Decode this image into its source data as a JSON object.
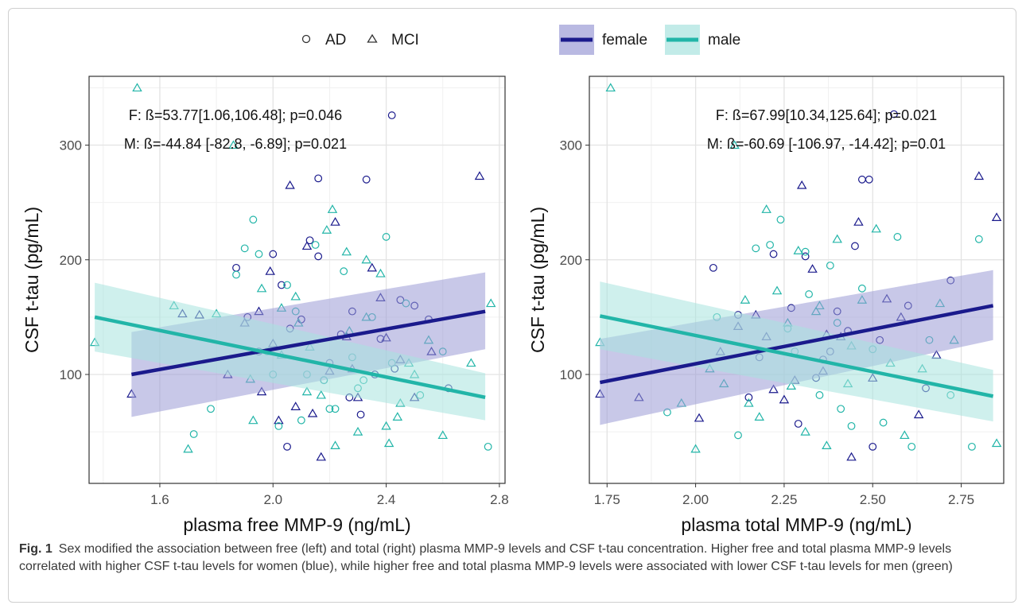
{
  "legend": {
    "shape_items": [
      {
        "label": "AD",
        "shape": "circle"
      },
      {
        "label": "MCI",
        "shape": "triangle"
      }
    ],
    "sex_items": [
      {
        "label": "female",
        "color": "#1a1a8c",
        "fill": "#9b9bd6"
      },
      {
        "label": "male",
        "color": "#22b5a8",
        "fill": "#a8e3de"
      }
    ]
  },
  "caption": {
    "label": "Fig. 1",
    "text": "Sex modified the association between free (left) and total (right) plasma MMP-9 levels and CSF t-tau concentration. Higher free and total plasma MMP-9 levels correlated with higher CSF t-tau levels for women (blue), while higher free and total plasma MMP-9 levels were associated with lower CSF t-tau levels for men (green)"
  },
  "chart_data": [
    {
      "type": "scatter",
      "xlabel": "plasma free MMP-9 (ng/mL)",
      "ylabel": "CSF t-tau (pg/mL)",
      "xlim": [
        1.35,
        2.82
      ],
      "ylim": [
        5,
        360
      ],
      "xticks": [
        1.6,
        2.0,
        2.4,
        2.8
      ],
      "xticklabels": [
        "1.6",
        "2.0",
        "2.4",
        "2.8"
      ],
      "yticks": [
        100,
        200,
        300
      ],
      "yticklabels": [
        "100",
        "200",
        "300"
      ],
      "grid": true,
      "annotations": [
        "F: ß=53.77[1.06,106.48]; p=0.046",
        "M: ß=-44.84 [-82.8, -6.89]; p=0.021"
      ],
      "fits": [
        {
          "name": "female",
          "x": [
            1.5,
            2.75
          ],
          "y": [
            100,
            155
          ],
          "ci_lower": [
            63,
            122
          ],
          "ci_upper": [
            137,
            189
          ]
        },
        {
          "name": "male",
          "x": [
            1.37,
            2.75
          ],
          "y": [
            150,
            80
          ],
          "ci_lower": [
            120,
            60
          ],
          "ci_upper": [
            180,
            101
          ]
        }
      ],
      "series": [
        {
          "sex": "female",
          "group": "AD",
          "x": [
            1.87,
            1.91,
            2.0,
            2.03,
            2.06,
            2.1,
            2.13,
            2.16,
            2.18,
            2.2,
            2.24,
            2.28,
            2.33,
            2.36,
            2.38,
            2.42,
            2.45,
            2.5,
            2.55,
            2.62,
            2.05,
            2.16,
            1.95,
            2.27,
            2.43,
            2.31
          ],
          "y": [
            193,
            150,
            205,
            178,
            140,
            148,
            217,
            203,
            95,
            110,
            135,
            155,
            270,
            100,
            131,
            326,
            165,
            160,
            148,
            88,
            37,
            271,
            120,
            80,
            105,
            65
          ]
        },
        {
          "sex": "female",
          "group": "MCI",
          "x": [
            1.5,
            1.68,
            1.74,
            1.84,
            1.9,
            1.95,
            1.99,
            2.02,
            2.06,
            2.08,
            2.12,
            2.17,
            2.2,
            2.22,
            2.26,
            2.3,
            2.35,
            2.38,
            2.4,
            2.45,
            2.5,
            2.56,
            2.73,
            2.0,
            1.96,
            2.14,
            2.28
          ],
          "y": [
            83,
            153,
            152,
            100,
            145,
            155,
            190,
            60,
            265,
            72,
            212,
            28,
            103,
            233,
            133,
            80,
            193,
            167,
            132,
            113,
            80,
            120,
            273,
            127,
            85,
            66,
            105
          ]
        },
        {
          "sex": "male",
          "group": "AD",
          "x": [
            1.72,
            1.78,
            1.87,
            1.93,
            1.95,
            1.98,
            2.02,
            2.05,
            2.08,
            2.12,
            2.15,
            2.18,
            2.22,
            2.25,
            2.28,
            2.32,
            2.35,
            2.4,
            2.42,
            2.47,
            2.52,
            2.6,
            2.76,
            2.1,
            2.2,
            2.3,
            2.0,
            1.9
          ],
          "y": [
            48,
            70,
            187,
            235,
            205,
            120,
            55,
            178,
            155,
            100,
            213,
            95,
            70,
            190,
            115,
            95,
            150,
            220,
            110,
            162,
            82,
            120,
            37,
            60,
            70,
            88,
            100,
            210
          ]
        },
        {
          "sex": "male",
          "group": "MCI",
          "x": [
            1.37,
            1.52,
            1.65,
            1.7,
            1.8,
            1.86,
            1.92,
            1.96,
            2.03,
            2.08,
            2.13,
            2.17,
            2.21,
            2.26,
            2.3,
            2.33,
            2.38,
            2.41,
            2.44,
            2.48,
            2.55,
            2.6,
            2.7,
            2.77,
            2.09,
            2.19,
            2.33,
            2.4,
            1.93,
            2.03,
            2.22,
            2.27,
            2.5,
            2.45,
            2.12
          ],
          "y": [
            128,
            350,
            160,
            35,
            153,
            300,
            96,
            175,
            158,
            168,
            124,
            82,
            244,
            207,
            50,
            150,
            188,
            40,
            63,
            110,
            130,
            47,
            110,
            162,
            145,
            226,
            200,
            55,
            60,
            117,
            38,
            138,
            100,
            75,
            85
          ]
        }
      ]
    },
    {
      "type": "scatter",
      "xlabel": "plasma total MMP-9 (ng/mL)",
      "ylabel": "CSF t-tau (pg/mL)",
      "xlim": [
        1.7,
        2.87
      ],
      "ylim": [
        5,
        360
      ],
      "xticks": [
        1.75,
        2.0,
        2.25,
        2.5,
        2.75
      ],
      "xticklabels": [
        "1.75",
        "2.00",
        "2.25",
        "2.50",
        "2.75"
      ],
      "yticks": [
        100,
        200,
        300
      ],
      "yticklabels": [
        "100",
        "200",
        "300"
      ],
      "grid": true,
      "annotations": [
        "F: ß=67.99[10.34,125.64]; p=0.021",
        "M: ß=-60.69 [-106.97, -14.42]; p=0.01"
      ],
      "fits": [
        {
          "name": "female",
          "x": [
            1.73,
            2.84
          ],
          "y": [
            93,
            160
          ],
          "ci_lower": [
            56,
            130
          ],
          "ci_upper": [
            131,
            191
          ]
        },
        {
          "name": "male",
          "x": [
            1.73,
            2.84
          ],
          "y": [
            151,
            81
          ],
          "ci_lower": [
            122,
            59
          ],
          "ci_upper": [
            181,
            104
          ]
        }
      ],
      "series": [
        {
          "sex": "female",
          "group": "AD",
          "x": [
            2.05,
            2.12,
            2.18,
            2.22,
            2.27,
            2.31,
            2.36,
            2.4,
            2.45,
            2.47,
            2.49,
            2.52,
            2.56,
            2.6,
            2.65,
            2.72,
            2.29,
            2.34,
            2.43,
            2.5,
            2.15,
            2.38
          ],
          "y": [
            193,
            152,
            115,
            205,
            158,
            203,
            113,
            155,
            212,
            270,
            270,
            130,
            327,
            160,
            88,
            182,
            57,
            97,
            138,
            37,
            80,
            120
          ]
        },
        {
          "sex": "female",
          "group": "MCI",
          "x": [
            1.73,
            1.84,
            2.01,
            2.07,
            2.12,
            2.17,
            2.2,
            2.25,
            2.3,
            2.33,
            2.37,
            2.41,
            2.44,
            2.46,
            2.5,
            2.54,
            2.58,
            2.63,
            2.68,
            2.8,
            2.85,
            2.28,
            2.36,
            2.22
          ],
          "y": [
            83,
            80,
            62,
            120,
            142,
            152,
            133,
            78,
            265,
            192,
            135,
            133,
            28,
            233,
            97,
            166,
            150,
            65,
            117,
            273,
            237,
            95,
            103,
            87
          ]
        },
        {
          "sex": "male",
          "group": "AD",
          "x": [
            1.92,
            2.06,
            2.12,
            2.17,
            2.21,
            2.24,
            2.28,
            2.31,
            2.35,
            2.38,
            2.41,
            2.44,
            2.47,
            2.5,
            2.53,
            2.57,
            2.61,
            2.66,
            2.72,
            2.78,
            2.8,
            2.26,
            2.32,
            2.4
          ],
          "y": [
            67,
            150,
            47,
            210,
            213,
            235,
            120,
            207,
            82,
            195,
            70,
            55,
            175,
            122,
            58,
            220,
            37,
            130,
            82,
            37,
            218,
            140,
            170,
            145
          ]
        },
        {
          "sex": "male",
          "group": "MCI",
          "x": [
            1.73,
            1.76,
            1.96,
            2.0,
            2.04,
            2.08,
            2.11,
            2.14,
            2.18,
            2.2,
            2.23,
            2.26,
            2.29,
            2.31,
            2.34,
            2.37,
            2.4,
            2.43,
            2.47,
            2.51,
            2.55,
            2.59,
            2.64,
            2.69,
            2.73,
            2.85,
            2.15,
            2.27,
            2.44,
            2.35
          ],
          "y": [
            128,
            350,
            75,
            35,
            105,
            92,
            300,
            165,
            63,
            244,
            173,
            145,
            208,
            50,
            155,
            38,
            218,
            92,
            165,
            227,
            110,
            47,
            105,
            162,
            130,
            40,
            75,
            90,
            125,
            160
          ]
        }
      ]
    }
  ]
}
